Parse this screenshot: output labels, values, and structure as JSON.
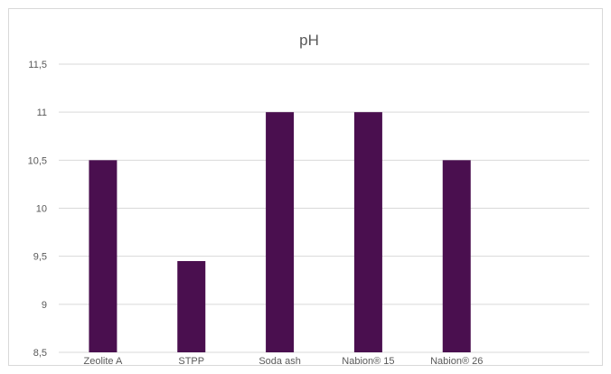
{
  "chart_data": {
    "type": "bar",
    "title": "pH",
    "xlabel": "",
    "ylabel": "",
    "categories": [
      "Zeolite A",
      "STPP",
      "Soda ash",
      "Nabion® 15",
      "Nabion® 26",
      ""
    ],
    "values": [
      10.5,
      9.45,
      11,
      11,
      10.5,
      null
    ],
    "ylim": [
      8.5,
      11.5
    ],
    "yticks": [
      8.5,
      9,
      9.5,
      10,
      10.5,
      11,
      11.5
    ],
    "ytick_labels": [
      "8,5",
      "9",
      "9,5",
      "10",
      "10,5",
      "11",
      "11,5"
    ],
    "grid": true,
    "legend": "none",
    "bar_color": "#4a0f4f",
    "grid_color": "#d9d9d9",
    "text_color": "#595959"
  }
}
